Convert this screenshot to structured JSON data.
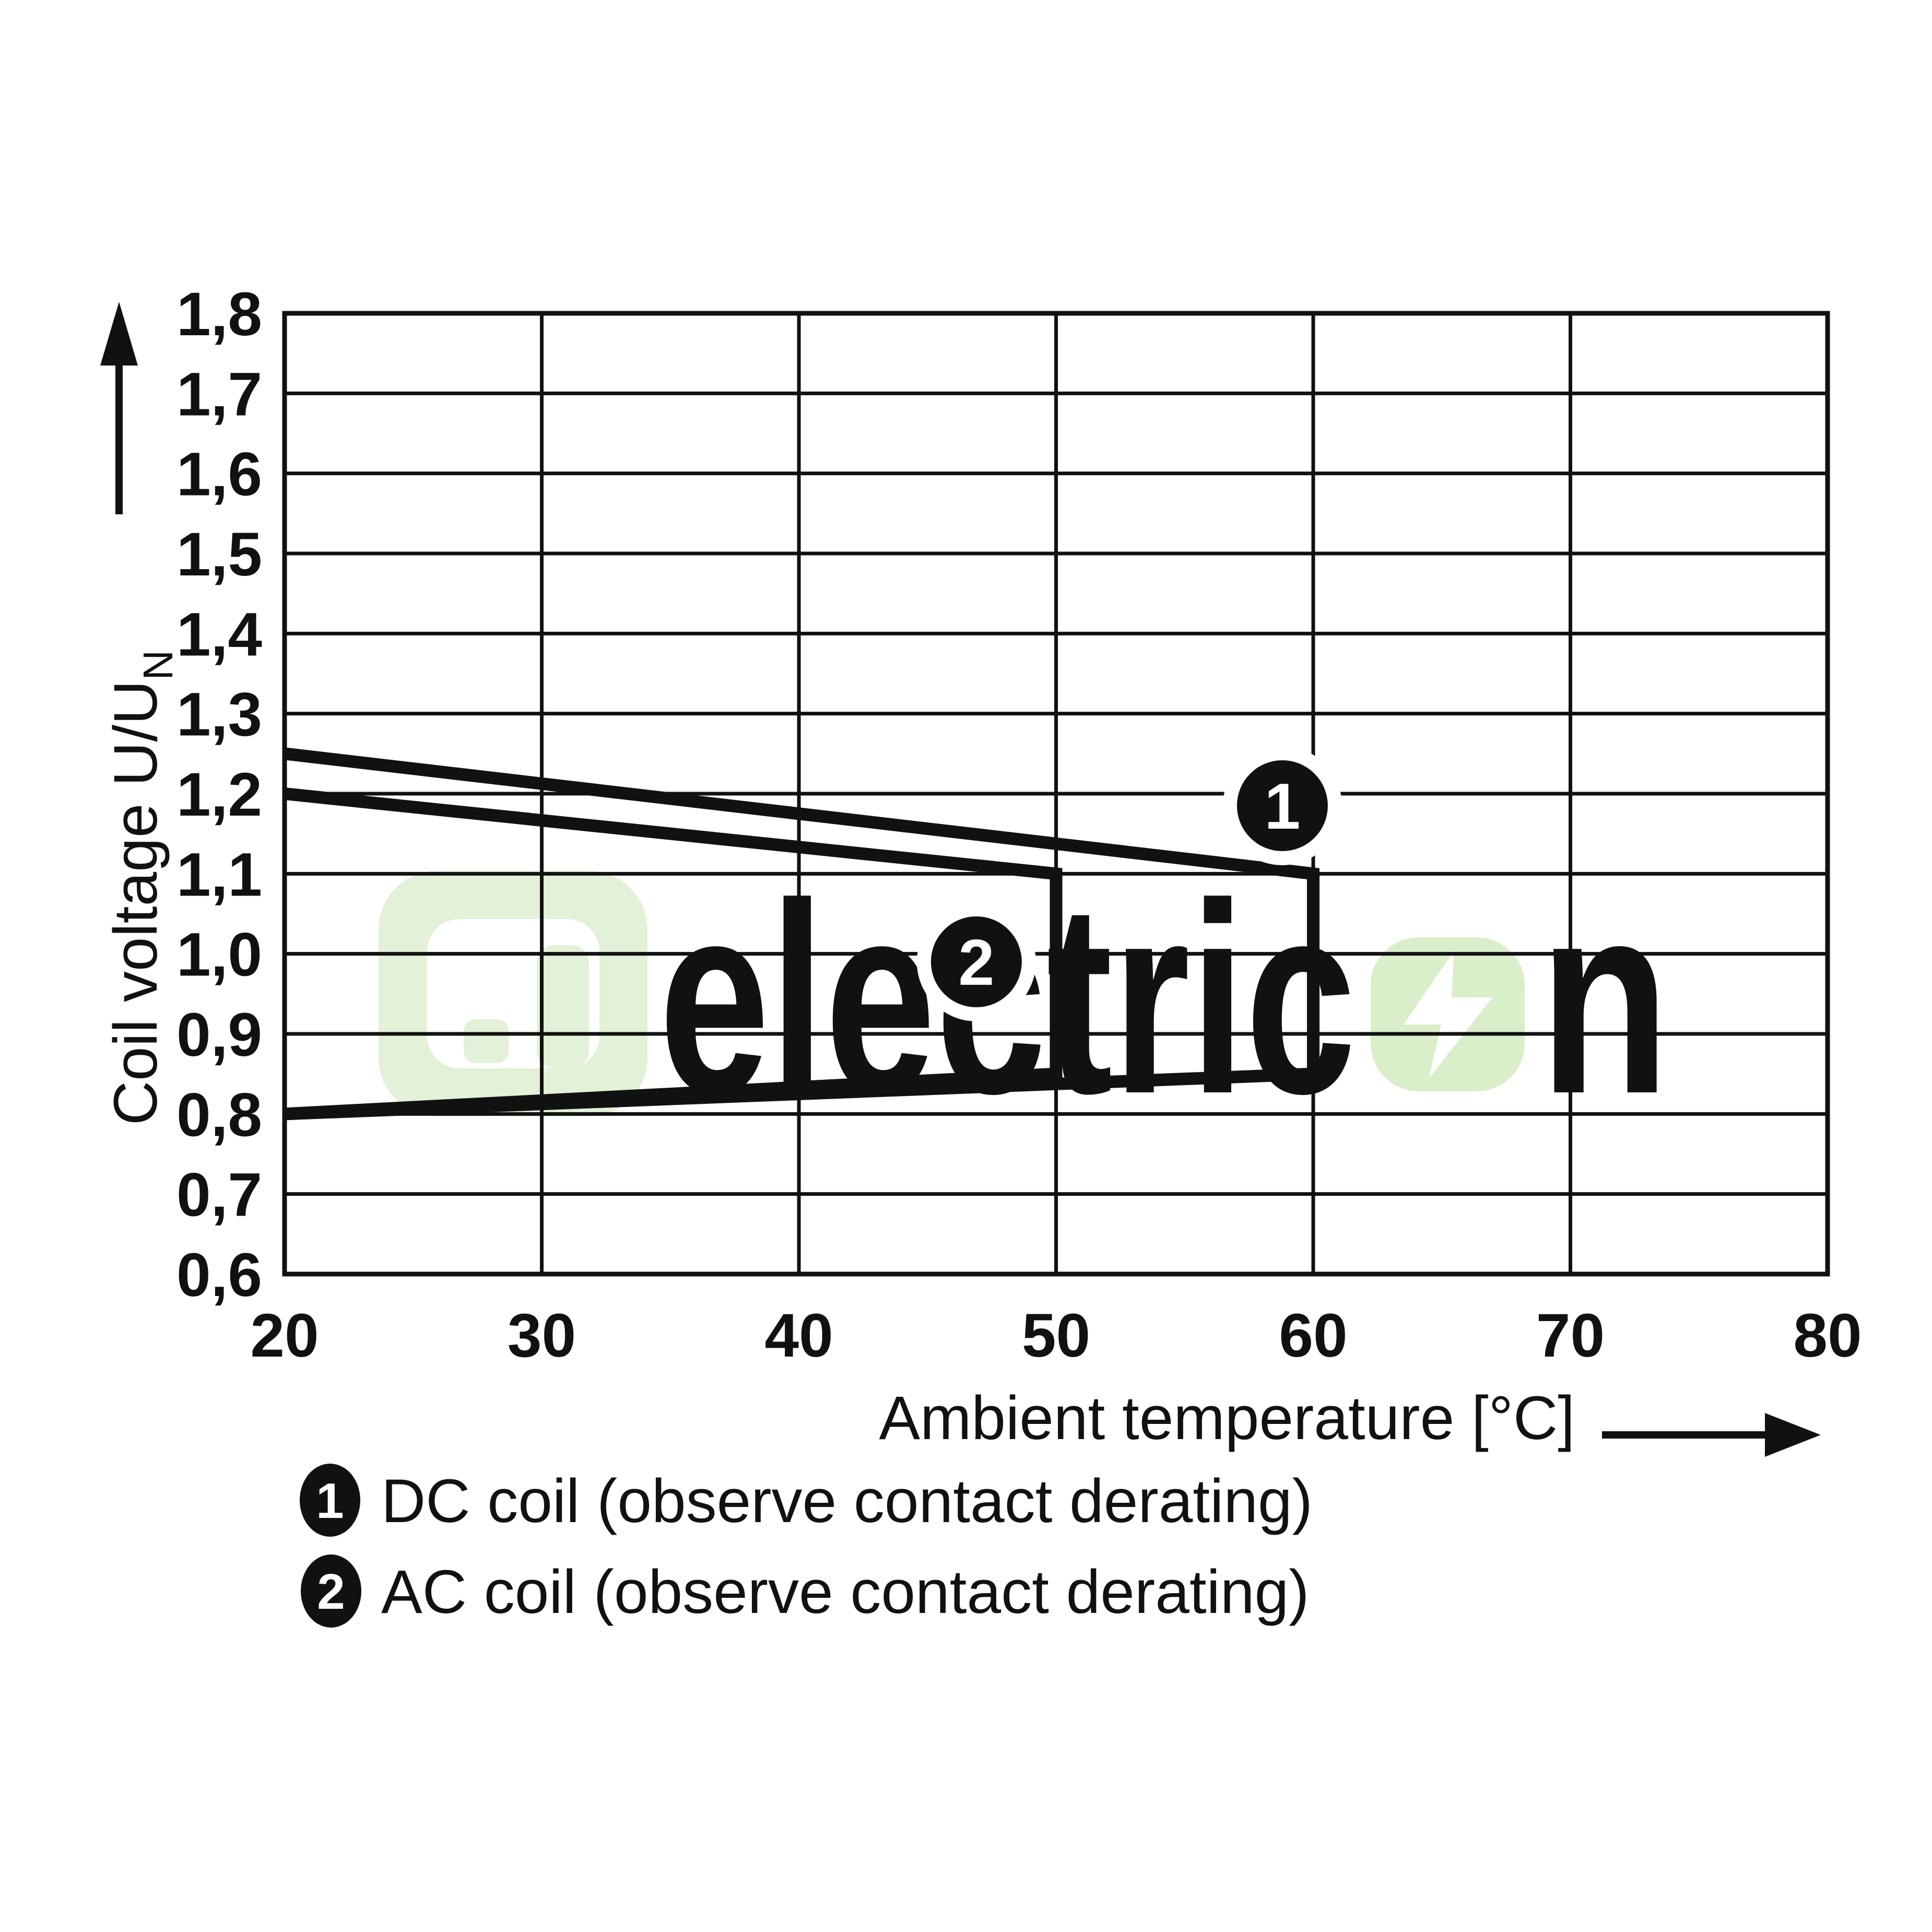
{
  "watermark": {
    "text_gray": "electric",
    "text_green": "n",
    "color_gray": "#e9ebe8",
    "color_green": "#ddf1d0",
    "color_logo": "#e2f1d7",
    "color_bolt_bg": "#d9eec9",
    "bolt_icon": "lightning-bolt"
  },
  "chart_data": {
    "type": "line",
    "title": "",
    "xlabel": "Ambient temperature [°C]",
    "ylabel": "Coil voltage U/U",
    "ylabel_sub": "N",
    "xlim": [
      20,
      80
    ],
    "ylim": [
      0.6,
      1.8
    ],
    "x_ticks": [
      20,
      30,
      40,
      50,
      60,
      70,
      80
    ],
    "y_ticks": [
      "1,8",
      "1,7",
      "1,6",
      "1,5",
      "1,4",
      "1,3",
      "1,2",
      "1,1",
      "1,0",
      "0,9",
      "0,8",
      "0,7",
      "0,6"
    ],
    "grid": true,
    "line_color": "#111111",
    "series": [
      {
        "name": "DC coil (observe contact derating)",
        "marker_label": "1",
        "marker_pos": [
          58.8,
          1.185
        ],
        "points": [
          [
            20,
            1.25
          ],
          [
            60,
            1.1
          ],
          [
            60,
            0.85
          ],
          [
            20,
            0.8
          ]
        ]
      },
      {
        "name": "AC coil (observe contact derating)",
        "marker_label": "2",
        "marker_pos": [
          46.9,
          0.99
        ],
        "points": [
          [
            20,
            1.2
          ],
          [
            50,
            1.1
          ],
          [
            50,
            0.85
          ],
          [
            20,
            0.8
          ]
        ]
      }
    ]
  },
  "legend": {
    "item1_num": "1",
    "item2_num": "2"
  }
}
